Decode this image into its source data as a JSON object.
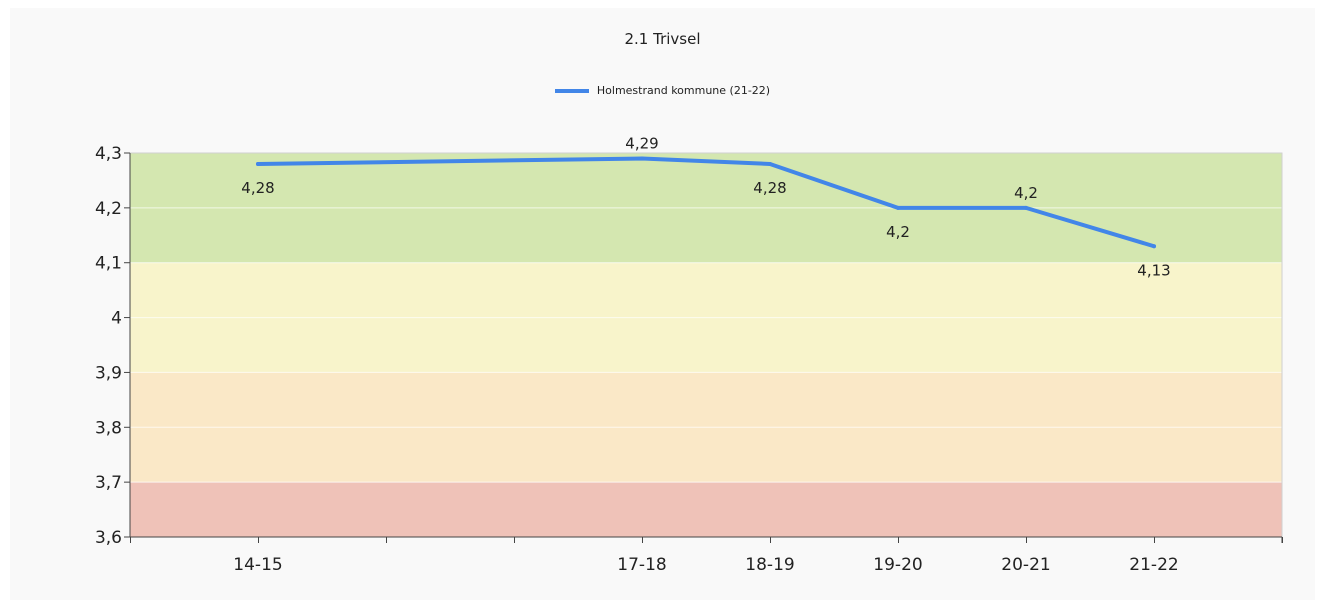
{
  "chart_data": {
    "type": "line",
    "title": "2.1 Trivsel",
    "xlabel": "",
    "ylabel": "",
    "categories": [
      "14-15",
      "17-18",
      "18-19",
      "19-20",
      "20-21",
      "21-22"
    ],
    "x_positions": [
      0,
      3,
      4,
      5,
      6,
      7
    ],
    "x_range": [
      -1,
      8
    ],
    "series": [
      {
        "name": "Holmestrand kommune (21-22)",
        "values": [
          4.28,
          4.29,
          4.28,
          4.2,
          4.2,
          4.13
        ],
        "labels": [
          "4,28",
          "4,29",
          "4,28",
          "4,2",
          "4,2",
          "4,13"
        ],
        "label_placement": [
          "below",
          "above",
          "below",
          "below",
          "above",
          "below"
        ]
      }
    ],
    "ylim": [
      3.6,
      4.3
    ],
    "yticks": [
      3.6,
      3.7,
      3.8,
      3.9,
      4.0,
      4.1,
      4.2,
      4.3
    ],
    "ytick_labels": [
      "3,6",
      "3,7",
      "3,8",
      "3,9",
      "4",
      "4,1",
      "4,2",
      "4,3"
    ],
    "bands": [
      {
        "from": 3.6,
        "to": 3.7,
        "color": "#efc2b8"
      },
      {
        "from": 3.7,
        "to": 3.9,
        "color": "#fae8c7"
      },
      {
        "from": 3.9,
        "to": 4.1,
        "color": "#f8f4cb"
      },
      {
        "from": 4.1,
        "to": 4.3,
        "color": "#d4e7b0"
      }
    ],
    "legend_position": "top-center",
    "grid": "horizontal",
    "line_color": "#4286e8"
  }
}
